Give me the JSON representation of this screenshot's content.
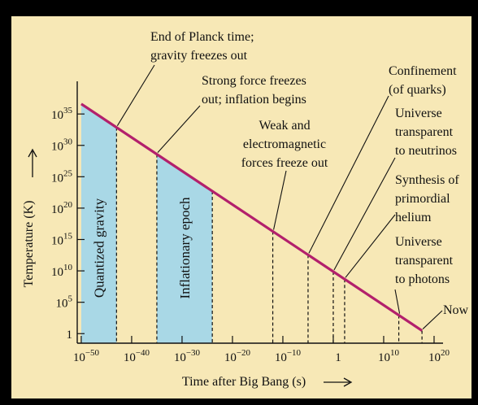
{
  "chart_data": {
    "type": "line",
    "xlabel": "Time after Big Bang (s)",
    "ylabel": "Temperature (K)",
    "xscale": "log",
    "yscale": "log",
    "xlim": [
      1.6e-51,
      6e+21
    ],
    "ylim": [
      0.03,
      1.6e+40
    ],
    "xticks": [
      {
        "value": 1e-50,
        "label": "10-50"
      },
      {
        "value": 1e-40,
        "label": "10-40"
      },
      {
        "value": 1e-30,
        "label": "10-30"
      },
      {
        "value": 1e-20,
        "label": "10-20"
      },
      {
        "value": 1e-10,
        "label": "10-10"
      },
      1,
      {
        "value": 10000000000.0,
        "label": "1010"
      },
      {
        "value": 1e+20,
        "label": "1020"
      }
    ],
    "yticks": [
      1,
      {
        "value": 100000.0,
        "label": "105"
      },
      {
        "value": 10000000000.0,
        "label": "1010"
      },
      {
        "value": 1000000000000000.0,
        "label": "1015"
      },
      {
        "value": 1e+20,
        "label": "1020"
      },
      {
        "value": 1e+25,
        "label": "1025"
      },
      {
        "value": 1e+30,
        "label": "1030"
      },
      {
        "value": 1e+35,
        "label": "1035"
      }
    ],
    "x": [
      1e-50,
      4e+17
    ],
    "values": [
      4e+36,
      3
    ],
    "color": "#b3206c",
    "regions": [
      {
        "label": "Quantized gravity",
        "from": 1e-50,
        "to": 1e-43,
        "color": "#a9d8e6"
      },
      {
        "label": "Inflationary epoch",
        "from": 1e-35,
        "to": 1e-24,
        "color": "#a9d8e6"
      }
    ],
    "events": [
      {
        "label": [
          "End of Planck time;",
          "gravity freezes out"
        ],
        "x": 1e-43
      },
      {
        "label": [
          "Strong force freezes",
          "out; inflation begins"
        ],
        "x": 1e-35
      },
      {
        "label": [
          "Weak and",
          "electromagnetic",
          "forces freeze out"
        ],
        "x": 1e-12
      },
      {
        "label": [
          "Confinement",
          "(of quarks)"
        ],
        "x": 1e-05
      },
      {
        "label": [
          "Universe",
          "transparent",
          "to neutrinos"
        ],
        "x": 1
      },
      {
        "label": [
          "Synthesis of",
          "primordial",
          "helium"
        ],
        "x": 180
      },
      {
        "label": [
          "Universe",
          "transparent",
          "to photons"
        ],
        "x": 10000000000000.0
      },
      {
        "label": [
          "Now"
        ],
        "x": 4e+17
      }
    ],
    "region_end_marks": [
      1e-24
    ]
  }
}
